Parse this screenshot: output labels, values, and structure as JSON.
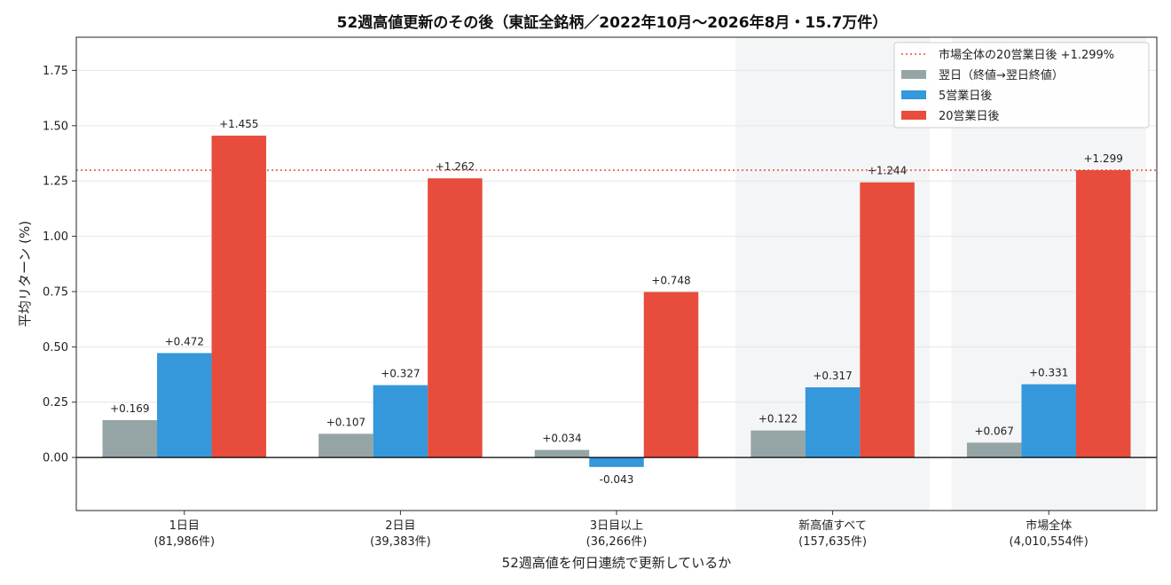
{
  "chart_data": {
    "type": "bar",
    "title": "52週高値更新のその後（東証全銘柄／2022年10月〜2026年8月・15.7万件）",
    "xlabel": "52週高値を何日連続で更新しているか",
    "ylabel": "平均リターン (%)",
    "ylim": [
      -0.24,
      1.9
    ],
    "yticks": [
      "0.00",
      "0.25",
      "0.50",
      "0.75",
      "1.00",
      "1.25",
      "1.50",
      "1.75"
    ],
    "ytick_values": [
      0,
      0.25,
      0.5,
      0.75,
      1.0,
      1.25,
      1.5,
      1.75
    ],
    "grid": true,
    "legend_position": "top-right",
    "categories": [
      {
        "line1": "1日目",
        "line2": "(81,986件)"
      },
      {
        "line1": "2日目",
        "line2": "(39,383件)"
      },
      {
        "line1": "3日目以上",
        "line2": "(36,266件)"
      },
      {
        "line1": "新高値すべて",
        "line2": "(157,635件)"
      },
      {
        "line1": "市場全体",
        "line2": "(4,010,554件)"
      }
    ],
    "highlighted_categories": [
      3,
      4
    ],
    "series": [
      {
        "name": "翌日（終値→翌日終値）",
        "color": "#95a5a6",
        "values": [
          0.169,
          0.107,
          0.034,
          0.122,
          0.067
        ],
        "labels": [
          "+0.169",
          "+0.107",
          "+0.034",
          "+0.122",
          "+0.067"
        ]
      },
      {
        "name": "5営業日後",
        "color": "#3498db",
        "values": [
          0.472,
          0.327,
          -0.043,
          0.317,
          0.331
        ],
        "labels": [
          "+0.472",
          "+0.327",
          "-0.043",
          "+0.317",
          "+0.331"
        ]
      },
      {
        "name": "20営業日後",
        "color": "#e74c3c",
        "values": [
          1.455,
          1.262,
          0.748,
          1.244,
          1.299
        ],
        "labels": [
          "+1.455",
          "+1.262",
          "+0.748",
          "+1.244",
          "+1.299"
        ]
      }
    ],
    "reference_line": {
      "name": "市場全体の20営業日後 +1.299%",
      "value": 1.299,
      "color": "#e74c3c",
      "style": "dotted"
    }
  }
}
